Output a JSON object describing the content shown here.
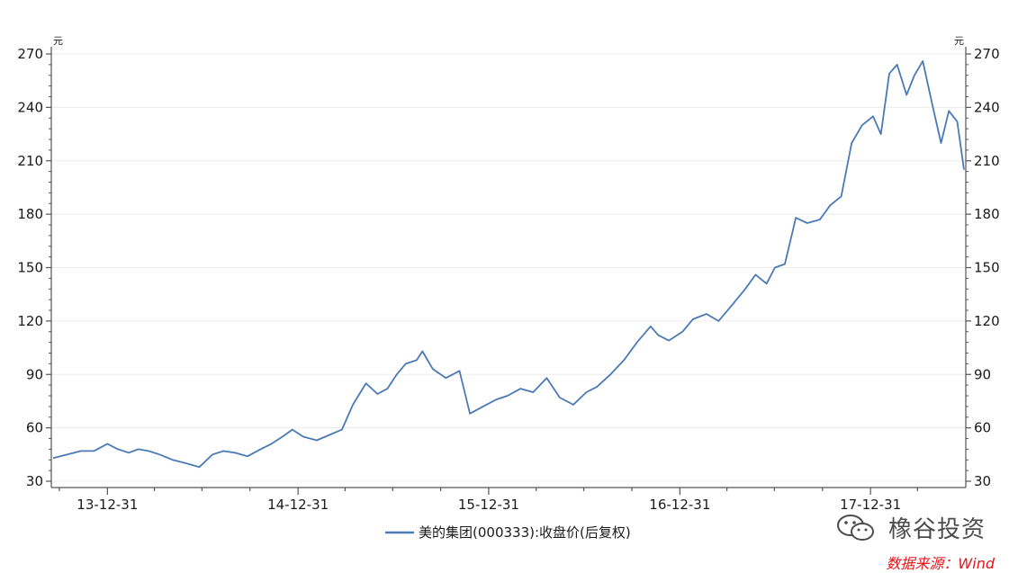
{
  "chart_data": {
    "type": "line",
    "unit_left": "元",
    "unit_right": "元",
    "ylim": [
      30,
      270
    ],
    "yticks": [
      30,
      60,
      90,
      120,
      150,
      180,
      210,
      240,
      270
    ],
    "xticks": [
      "13-12-31",
      "14-12-31",
      "15-12-31",
      "16-12-31",
      "17-12-31"
    ],
    "grid": true,
    "legend_position": "bottom",
    "series": [
      {
        "name": "美的集团(000333):收盘价(后复权)",
        "color": "#4a7ab5",
        "x": [
          "13-09-18",
          "13-10-15",
          "13-11-10",
          "13-12-05",
          "13-12-31",
          "14-01-20",
          "14-02-10",
          "14-02-28",
          "14-03-20",
          "14-04-10",
          "14-05-05",
          "14-06-01",
          "14-06-25",
          "14-07-20",
          "14-08-10",
          "14-09-01",
          "14-09-25",
          "14-10-20",
          "14-11-10",
          "14-12-01",
          "14-12-20",
          "15-01-10",
          "15-02-05",
          "15-03-01",
          "15-03-25",
          "15-04-15",
          "15-05-10",
          "15-06-01",
          "15-06-20",
          "15-07-08",
          "15-07-25",
          "15-08-15",
          "15-08-26",
          "15-09-15",
          "15-10-10",
          "15-11-05",
          "15-11-25",
          "15-12-20",
          "16-01-15",
          "16-02-05",
          "16-03-01",
          "16-03-25",
          "16-04-20",
          "16-05-15",
          "16-06-10",
          "16-07-05",
          "16-07-25",
          "16-08-20",
          "16-09-15",
          "16-10-10",
          "16-11-05",
          "16-11-20",
          "16-12-10",
          "17-01-05",
          "17-01-25",
          "17-02-20",
          "17-03-15",
          "17-04-10",
          "17-05-05",
          "17-05-25",
          "17-06-15",
          "17-07-01",
          "17-07-20",
          "17-08-10",
          "17-09-01",
          "17-09-25",
          "17-10-15",
          "17-11-05",
          "17-11-25",
          "17-12-15",
          "18-01-05",
          "18-01-20",
          "18-02-05",
          "18-02-20",
          "18-03-10",
          "18-03-25",
          "18-04-10",
          "18-04-28",
          "18-05-15",
          "18-05-30",
          "18-06-15",
          "18-06-28"
        ],
        "values": [
          43,
          45,
          47,
          47,
          51,
          48,
          46,
          48,
          47,
          45,
          42,
          40,
          38,
          45,
          47,
          46,
          44,
          48,
          51,
          55,
          59,
          55,
          53,
          56,
          59,
          73,
          85,
          79,
          82,
          90,
          96,
          98,
          103,
          93,
          88,
          92,
          68,
          72,
          76,
          78,
          82,
          80,
          88,
          77,
          73,
          80,
          83,
          90,
          98,
          108,
          117,
          112,
          109,
          114,
          121,
          124,
          120,
          129,
          138,
          146,
          141,
          150,
          152,
          178,
          175,
          177,
          185,
          190,
          220,
          230,
          235,
          225,
          259,
          264,
          247,
          258,
          266,
          242,
          220,
          238,
          232,
          205
        ]
      }
    ]
  },
  "footer": {
    "watermark_text": "橡谷投资",
    "source_text": "数据来源：Wind"
  },
  "colors": {
    "line": "#4a7ab5",
    "source": "#e8141b"
  }
}
